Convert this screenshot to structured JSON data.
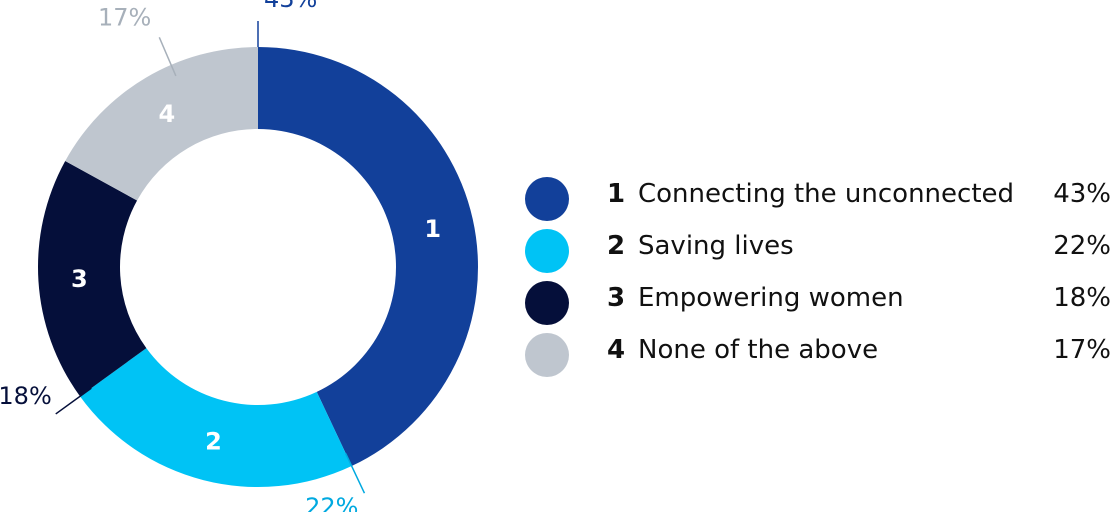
{
  "chart_data": {
    "type": "pie",
    "donut": true,
    "categories": [
      "Connecting the unconnected",
      "Saving lives",
      "Empowering women",
      "None of the above"
    ],
    "numbers": [
      "1",
      "2",
      "3",
      "4"
    ],
    "values": [
      43,
      22,
      18,
      17
    ],
    "value_labels": [
      "43%",
      "22%",
      "18%",
      "17%"
    ],
    "colors": [
      "#12409a",
      "#00c3f5",
      "#050f3a",
      "#bfc6cf"
    ],
    "label_colors": [
      "#12409a",
      "#00a9e0",
      "#050f3a",
      "#a7b0ba"
    ],
    "legend_position": "right"
  }
}
